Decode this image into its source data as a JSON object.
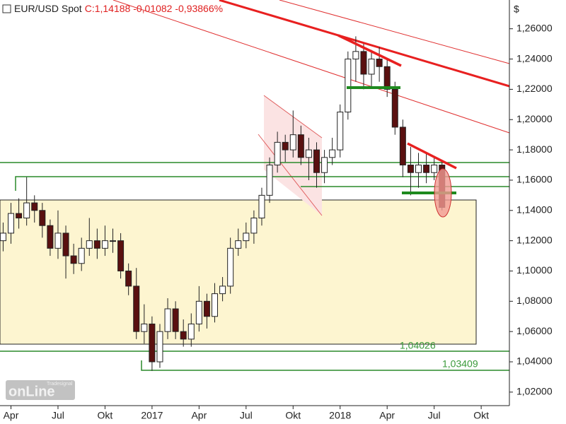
{
  "header": {
    "symbol": "EUR/USD Spot",
    "quote": "C:1,14188 -0,01082 -0,93866%"
  },
  "logo": {
    "small": "Tradesignal",
    "big": "onLine"
  },
  "chart_data": {
    "type": "candlestick",
    "currency": "$",
    "up_color": "#ffffff",
    "down_color": "#5a1010",
    "outline_color": "#222222",
    "x": [
      2.5,
      3,
      3.5,
      4,
      4.5,
      5,
      5.5,
      6,
      6.5,
      7,
      7.5,
      8,
      8.5,
      9,
      9.5,
      10,
      10.5,
      11,
      11.5,
      12,
      12.5,
      13,
      13.5,
      14,
      14.5,
      15,
      15.5,
      16,
      16.5,
      17,
      17.5,
      18,
      18.5,
      19,
      19.5,
      20,
      20.5,
      21,
      21.5,
      22,
      22.5,
      23,
      23.5,
      24,
      24.5,
      25,
      25.5,
      26,
      26.5,
      27,
      27.5,
      28,
      28.5,
      29,
      29.5,
      30,
      30.5
    ],
    "open": [
      1.12,
      1.125,
      1.138,
      1.135,
      1.145,
      1.14,
      1.13,
      1.115,
      1.125,
      1.11,
      1.105,
      1.115,
      1.12,
      1.115,
      1.12,
      1.12,
      1.1,
      1.09,
      1.06,
      1.065,
      1.04,
      1.06,
      1.075,
      1.06,
      1.055,
      1.065,
      1.08,
      1.07,
      1.085,
      1.09,
      1.115,
      1.12,
      1.125,
      1.135,
      1.15,
      1.17,
      1.185,
      1.18,
      1.19,
      1.175,
      1.18,
      1.165,
      1.175,
      1.18,
      1.205,
      1.24,
      1.245,
      1.23,
      1.24,
      1.235,
      1.22,
      1.195,
      1.17,
      1.165,
      1.17,
      1.165,
      1.17
    ],
    "high": [
      1.132,
      1.145,
      1.148,
      1.162,
      1.15,
      1.145,
      1.134,
      1.14,
      1.13,
      1.118,
      1.122,
      1.135,
      1.128,
      1.13,
      1.128,
      1.125,
      1.105,
      1.102,
      1.078,
      1.07,
      1.065,
      1.082,
      1.08,
      1.068,
      1.072,
      1.09,
      1.085,
      1.092,
      1.096,
      1.122,
      1.128,
      1.132,
      1.14,
      1.155,
      1.175,
      1.192,
      1.19,
      1.206,
      1.196,
      1.188,
      1.185,
      1.18,
      1.188,
      1.21,
      1.245,
      1.255,
      1.25,
      1.246,
      1.248,
      1.24,
      1.225,
      1.2,
      1.182,
      1.178,
      1.178,
      1.176,
      1.172
    ],
    "low": [
      1.113,
      1.118,
      1.128,
      1.13,
      1.132,
      1.122,
      1.11,
      1.108,
      1.095,
      1.098,
      1.1,
      1.11,
      1.108,
      1.11,
      1.112,
      1.095,
      1.084,
      1.055,
      1.052,
      1.034,
      1.036,
      1.055,
      1.055,
      1.05,
      1.05,
      1.06,
      1.062,
      1.066,
      1.08,
      1.085,
      1.11,
      1.115,
      1.118,
      1.13,
      1.145,
      1.165,
      1.172,
      1.175,
      1.17,
      1.16,
      1.155,
      1.158,
      1.17,
      1.175,
      1.2,
      1.225,
      1.22,
      1.222,
      1.225,
      1.215,
      1.19,
      1.162,
      1.15,
      1.155,
      1.158,
      1.16,
      1.14
    ],
    "close": [
      1.125,
      1.138,
      1.135,
      1.145,
      1.14,
      1.13,
      1.115,
      1.125,
      1.11,
      1.105,
      1.115,
      1.12,
      1.115,
      1.12,
      1.12,
      1.1,
      1.09,
      1.06,
      1.065,
      1.04,
      1.06,
      1.075,
      1.06,
      1.055,
      1.065,
      1.08,
      1.07,
      1.085,
      1.09,
      1.115,
      1.12,
      1.125,
      1.135,
      1.15,
      1.17,
      1.185,
      1.18,
      1.19,
      1.175,
      1.18,
      1.165,
      1.175,
      1.18,
      1.205,
      1.24,
      1.245,
      1.23,
      1.24,
      1.235,
      1.22,
      1.195,
      1.17,
      1.165,
      1.17,
      1.165,
      1.17,
      1.142
    ],
    "xlim": [
      2.3,
      34.8
    ],
    "xticks": [
      {
        "value": 3,
        "label": "Apr"
      },
      {
        "value": 6,
        "label": "Jul"
      },
      {
        "value": 9,
        "label": "Okt"
      },
      {
        "value": 12,
        "label": "2017"
      },
      {
        "value": 15,
        "label": "Apr"
      },
      {
        "value": 18,
        "label": "Jul"
      },
      {
        "value": 21,
        "label": "Okt"
      },
      {
        "value": 24,
        "label": "2018"
      },
      {
        "value": 27,
        "label": "Apr"
      },
      {
        "value": 30,
        "label": "Jul"
      },
      {
        "value": 33,
        "label": "Okt"
      }
    ],
    "ylim": [
      1.012,
      1.279
    ],
    "yticks": [
      {
        "value": 1.26,
        "label": "1,26000"
      },
      {
        "value": 1.24,
        "label": "1,24000"
      },
      {
        "value": 1.22,
        "label": "1,22000"
      },
      {
        "value": 1.2,
        "label": "1,20000"
      },
      {
        "value": 1.18,
        "label": "1,18000"
      },
      {
        "value": 1.16,
        "label": "1,16000"
      },
      {
        "value": 1.14,
        "label": "1,14000"
      },
      {
        "value": 1.12,
        "label": "1,12000"
      },
      {
        "value": 1.1,
        "label": "1,10000"
      },
      {
        "value": 1.08,
        "label": "1,08000"
      },
      {
        "value": 1.06,
        "label": "1,06000"
      },
      {
        "value": 1.04,
        "label": "1,04000"
      },
      {
        "value": 1.02,
        "label": "1,02000"
      }
    ],
    "annotations": [
      "1,04026",
      "1,03409"
    ]
  }
}
